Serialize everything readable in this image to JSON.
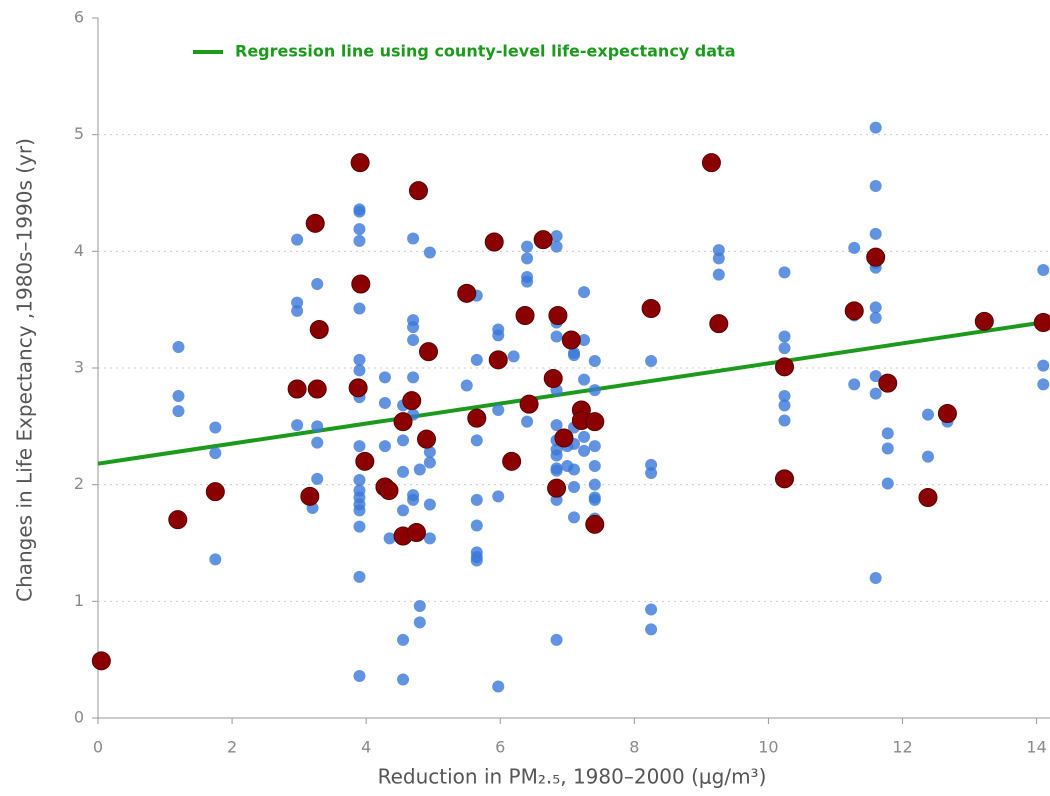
{
  "chart_data": {
    "type": "scatter",
    "xlabel": "Reduction in PM₂.₅, 1980–2000 (μg/m³)",
    "ylabel": "Changes in Life Expectancy ,1980s–1990s (yr)",
    "xlim": [
      0,
      14.2
    ],
    "ylim": [
      0,
      6
    ],
    "xticks": [
      0,
      2,
      4,
      6,
      8,
      10,
      12,
      14
    ],
    "yticks": [
      0,
      1,
      2,
      3,
      4,
      5,
      6
    ],
    "grid": true,
    "legend": "top-left",
    "series": [
      {
        "color": "#3b78d8",
        "x": [
          1.2,
          1.2,
          1.2,
          1.75,
          1.75,
          1.75,
          2.97,
          2.97,
          2.97,
          2.97,
          3.2,
          3.27,
          3.27,
          3.27,
          3.27,
          3.9,
          3.9,
          3.9,
          3.9,
          3.9,
          3.9,
          3.9,
          3.9,
          3.9,
          3.9,
          3.9,
          3.9,
          3.9,
          3.9,
          3.9,
          3.9,
          3.9,
          3.9,
          4.28,
          4.28,
          4.28,
          4.35,
          4.55,
          4.55,
          4.55,
          4.55,
          4.55,
          4.55,
          4.7,
          4.7,
          4.7,
          4.7,
          4.7,
          4.7,
          4.7,
          4.7,
          4.8,
          4.8,
          4.8,
          4.95,
          4.95,
          4.95,
          4.95,
          4.95,
          5.5,
          5.65,
          5.65,
          5.65,
          5.65,
          5.65,
          5.65,
          5.65,
          5.65,
          5.65,
          5.97,
          5.97,
          5.97,
          5.97,
          5.97,
          6.2,
          6.4,
          6.4,
          6.4,
          6.4,
          6.4,
          6.84,
          6.84,
          6.84,
          6.84,
          6.84,
          6.84,
          6.84,
          6.84,
          6.84,
          6.84,
          6.84,
          6.84,
          6.84,
          7.0,
          7.0,
          7.1,
          7.1,
          7.1,
          7.1,
          7.1,
          7.1,
          7.1,
          7.25,
          7.25,
          7.25,
          7.25,
          7.25,
          7.41,
          7.41,
          7.41,
          7.41,
          7.41,
          7.41,
          7.41,
          7.41,
          8.25,
          8.25,
          8.25,
          8.25,
          8.25,
          8.25,
          9.26,
          9.26,
          9.26,
          10.24,
          10.24,
          10.24,
          10.24,
          10.24,
          10.24,
          10.24,
          11.28,
          11.28,
          11.28,
          11.6,
          11.6,
          11.6,
          11.6,
          11.6,
          11.6,
          11.6,
          11.6,
          11.6,
          11.6,
          11.78,
          11.78,
          11.78,
          12.38,
          12.38,
          12.67,
          14.1,
          14.1,
          14.1
        ],
        "values": [
          3.18,
          2.76,
          2.63,
          2.49,
          2.27,
          1.36,
          4.1,
          3.56,
          3.49,
          2.51,
          1.8,
          3.72,
          2.5,
          2.36,
          2.05,
          4.36,
          4.34,
          4.19,
          4.09,
          3.71,
          3.51,
          3.07,
          2.98,
          2.75,
          2.33,
          2.04,
          1.95,
          1.89,
          1.83,
          1.78,
          1.64,
          1.21,
          0.36,
          2.92,
          2.7,
          2.33,
          1.54,
          2.68,
          2.38,
          2.11,
          1.78,
          0.67,
          0.33,
          4.11,
          3.41,
          3.35,
          3.24,
          2.92,
          2.6,
          1.91,
          1.87,
          2.13,
          0.96,
          0.82,
          3.99,
          2.28,
          2.19,
          1.83,
          1.54,
          2.85,
          3.62,
          3.07,
          2.59,
          2.38,
          1.87,
          1.65,
          1.42,
          1.38,
          1.35,
          3.33,
          3.28,
          2.64,
          1.9,
          0.27,
          3.1,
          4.04,
          3.94,
          3.78,
          3.74,
          2.54,
          4.13,
          4.04,
          3.39,
          3.27,
          2.81,
          2.51,
          2.38,
          2.3,
          2.25,
          2.14,
          2.12,
          1.87,
          0.67,
          2.33,
          2.16,
          3.11,
          3.13,
          2.49,
          2.35,
          2.13,
          1.98,
          1.72,
          3.65,
          3.24,
          2.9,
          2.41,
          2.29,
          3.06,
          2.81,
          2.33,
          2.16,
          2.0,
          1.89,
          1.87,
          1.71,
          3.53,
          3.06,
          2.17,
          2.1,
          0.93,
          0.76,
          4.01,
          3.94,
          3.8,
          3.82,
          3.27,
          3.17,
          3.01,
          2.76,
          2.68,
          2.55,
          4.03,
          3.45,
          2.86,
          5.06,
          4.56,
          4.15,
          3.9,
          3.86,
          3.52,
          3.43,
          2.93,
          2.78,
          1.2,
          2.44,
          2.31,
          2.01,
          2.6,
          2.24,
          2.54,
          3.84,
          3.02,
          2.86
        ]
      },
      {
        "color": "#8b0000",
        "x": [
          0.05,
          1.19,
          1.75,
          3.16,
          2.97,
          3.27,
          3.24,
          3.3,
          3.91,
          3.92,
          3.88,
          3.98,
          4.28,
          4.34,
          4.55,
          4.55,
          4.68,
          4.75,
          4.78,
          4.93,
          4.9,
          5.5,
          5.65,
          5.91,
          5.97,
          6.17,
          6.37,
          6.43,
          6.64,
          6.79,
          6.84,
          6.86,
          6.95,
          7.06,
          7.21,
          7.21,
          7.41,
          7.41,
          8.25,
          9.15,
          9.26,
          10.24,
          10.24,
          11.28,
          11.6,
          11.78,
          12.38,
          12.67,
          13.22,
          14.1
        ],
        "values": [
          0.49,
          1.7,
          1.94,
          1.9,
          2.82,
          2.82,
          4.24,
          3.33,
          4.76,
          3.72,
          2.83,
          2.2,
          1.98,
          1.95,
          1.56,
          2.54,
          2.72,
          1.59,
          4.52,
          3.14,
          2.39,
          3.64,
          2.57,
          4.08,
          3.07,
          2.2,
          3.45,
          2.69,
          4.1,
          2.91,
          1.97,
          3.45,
          2.4,
          3.24,
          2.64,
          2.55,
          2.54,
          1.66,
          3.51,
          4.76,
          3.38,
          3.01,
          2.05,
          3.49,
          3.95,
          2.87,
          1.89,
          2.61,
          3.4,
          3.39
        ]
      },
      {
        "type": "line",
        "name": "Regression line using county-level life-expectancy data",
        "color": "#1c9a1c",
        "x": [
          0,
          14.2
        ],
        "values": [
          2.18,
          3.4
        ]
      }
    ]
  }
}
